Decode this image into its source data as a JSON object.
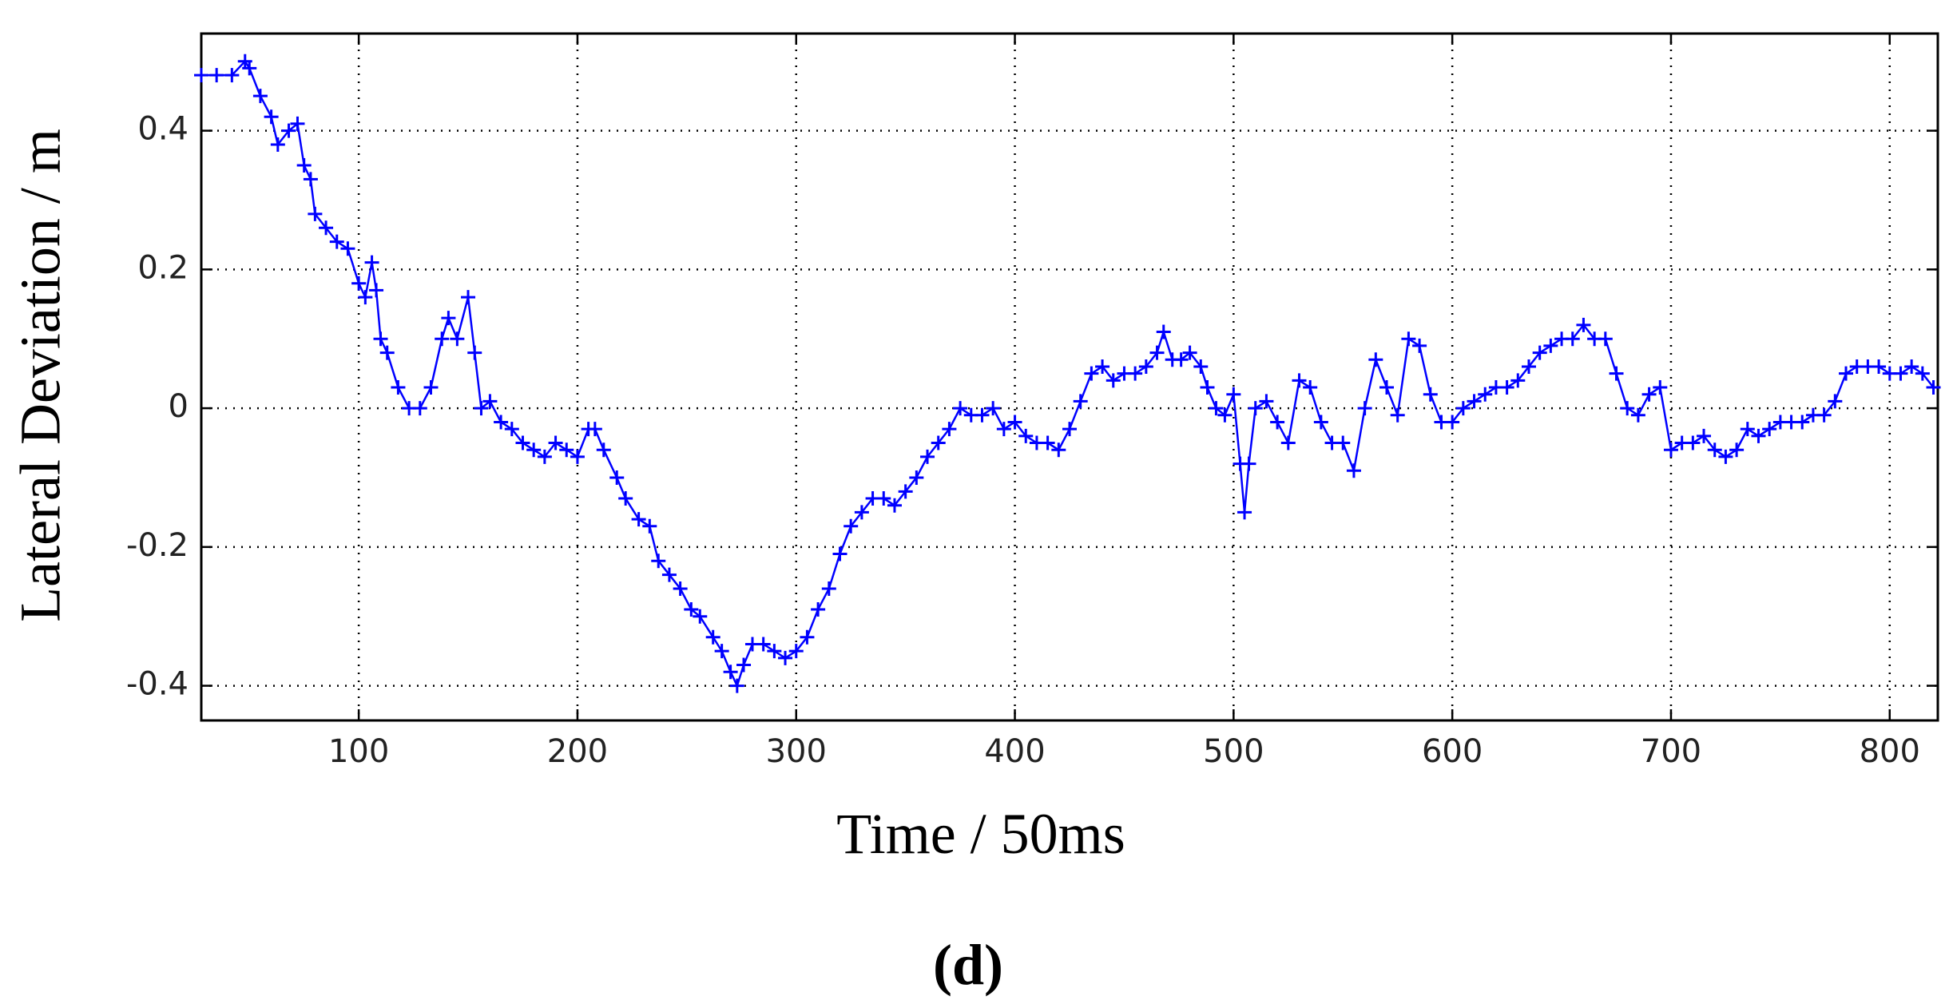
{
  "chart_data": {
    "type": "line",
    "xlabel": "Time / 50ms",
    "ylabel": "Lateral Deviation / m",
    "caption": "(d)",
    "xlim": [
      28,
      822
    ],
    "ylim": [
      -0.45,
      0.54
    ],
    "xticks": [
      100,
      200,
      300,
      400,
      500,
      600,
      700,
      800
    ],
    "yticks": [
      -0.4,
      -0.2,
      0,
      0.2,
      0.4
    ],
    "grid": true,
    "series": [
      {
        "color": "#0000ff",
        "marker": "+",
        "x": [
          28,
          35,
          42,
          48,
          50,
          55,
          60,
          63,
          68,
          72,
          75,
          78,
          80,
          85,
          90,
          95,
          100,
          103,
          106,
          108,
          110,
          113,
          118,
          123,
          128,
          133,
          138,
          141,
          145,
          150,
          153,
          156,
          160,
          165,
          170,
          175,
          180,
          185,
          190,
          195,
          200,
          205,
          208,
          212,
          218,
          222,
          228,
          233,
          237,
          242,
          247,
          252,
          256,
          262,
          266,
          270,
          273,
          276,
          280,
          285,
          290,
          295,
          300,
          305,
          310,
          315,
          320,
          325,
          330,
          335,
          340,
          345,
          350,
          355,
          360,
          365,
          370,
          375,
          380,
          385,
          390,
          395,
          400,
          405,
          410,
          415,
          420,
          425,
          430,
          435,
          440,
          445,
          450,
          455,
          460,
          465,
          468,
          472,
          476,
          480,
          485,
          488,
          492,
          496,
          500,
          503,
          505,
          507,
          510,
          515,
          520,
          525,
          530,
          535,
          540,
          545,
          550,
          555,
          560,
          565,
          570,
          575,
          580,
          585,
          590,
          595,
          600,
          605,
          610,
          615,
          620,
          625,
          630,
          635,
          640,
          645,
          650,
          655,
          660,
          665,
          670,
          675,
          680,
          685,
          690,
          695,
          700,
          705,
          710,
          715,
          720,
          725,
          730,
          735,
          740,
          745,
          750,
          755,
          760,
          765,
          770,
          775,
          780,
          785,
          790,
          795,
          800,
          805,
          810,
          815,
          820
        ],
        "values": [
          0.48,
          0.48,
          0.48,
          0.5,
          0.49,
          0.45,
          0.42,
          0.38,
          0.4,
          0.41,
          0.35,
          0.33,
          0.28,
          0.26,
          0.24,
          0.23,
          0.18,
          0.16,
          0.21,
          0.17,
          0.1,
          0.08,
          0.03,
          0.0,
          0.0,
          0.03,
          0.1,
          0.13,
          0.1,
          0.16,
          0.08,
          0.0,
          0.01,
          -0.02,
          -0.03,
          -0.05,
          -0.06,
          -0.07,
          -0.05,
          -0.06,
          -0.07,
          -0.03,
          -0.03,
          -0.06,
          -0.1,
          -0.13,
          -0.16,
          -0.17,
          -0.22,
          -0.24,
          -0.26,
          -0.29,
          -0.3,
          -0.33,
          -0.35,
          -0.38,
          -0.4,
          -0.37,
          -0.34,
          -0.34,
          -0.35,
          -0.36,
          -0.35,
          -0.33,
          -0.29,
          -0.26,
          -0.21,
          -0.17,
          -0.15,
          -0.13,
          -0.13,
          -0.14,
          -0.12,
          -0.1,
          -0.07,
          -0.05,
          -0.03,
          0.0,
          -0.01,
          -0.01,
          0.0,
          -0.03,
          -0.02,
          -0.04,
          -0.05,
          -0.05,
          -0.06,
          -0.03,
          0.01,
          0.05,
          0.06,
          0.04,
          0.05,
          0.05,
          0.06,
          0.08,
          0.11,
          0.07,
          0.07,
          0.08,
          0.06,
          0.03,
          0.0,
          -0.01,
          0.02,
          -0.08,
          -0.15,
          -0.08,
          0.0,
          0.01,
          -0.02,
          -0.05,
          0.04,
          0.03,
          -0.02,
          -0.05,
          -0.05,
          -0.09,
          0.0,
          0.07,
          0.03,
          -0.01,
          0.1,
          0.09,
          0.02,
          -0.02,
          -0.02,
          0.0,
          0.01,
          0.02,
          0.03,
          0.03,
          0.04,
          0.06,
          0.08,
          0.09,
          0.1,
          0.1,
          0.12,
          0.1,
          0.1,
          0.05,
          0.0,
          -0.01,
          0.02,
          0.03,
          -0.06,
          -0.05,
          -0.05,
          -0.04,
          -0.06,
          -0.07,
          -0.06,
          -0.03,
          -0.04,
          -0.03,
          -0.02,
          -0.02,
          -0.02,
          -0.01,
          -0.01,
          0.01,
          0.05,
          0.06,
          0.06,
          0.06,
          0.05,
          0.05,
          0.06,
          0.05,
          0.03
        ]
      }
    ]
  }
}
